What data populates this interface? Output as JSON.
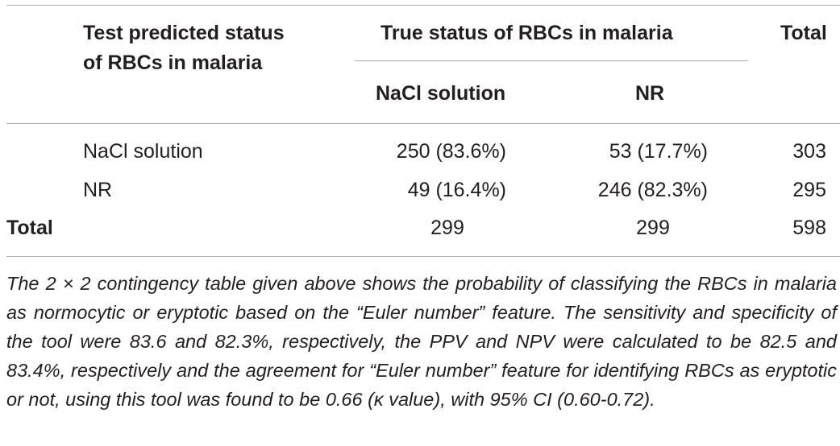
{
  "table": {
    "header": {
      "row_label_line1": "Test predicted status",
      "row_label_line2": "of RBCs in malaria",
      "group_label": "True status of RBCs in malaria",
      "total_label": "Total",
      "sub_col1": "NaCl solution",
      "sub_col2": "NR"
    },
    "rows": [
      {
        "label": "NaCl solution",
        "col1": "250 (83.6%)",
        "col2": "53 (17.7%)",
        "total": "303"
      },
      {
        "label": "NR",
        "col1": "49 (16.4%)",
        "col2": "246 (82.3%)",
        "total": "295"
      }
    ],
    "total_row": {
      "label": "Total",
      "col1": "299",
      "col2": "299",
      "total": "598"
    },
    "footnote": "The 2 × 2 contingency table given above shows the probability of classifying the RBCs in malaria as normocytic or eryptotic based on the “Euler number” feature. The sensitivity and specificity of the tool were 83.6 and 82.3%, respectively, the PPV and NPV were calculated to be 82.5 and 83.4%, respectively and the agreement for “Euler number” feature for identifying RBCs as eryptotic or not, using this tool was found to be 0.66 (κ value), with 95% CI (0.60-0.72)."
  }
}
